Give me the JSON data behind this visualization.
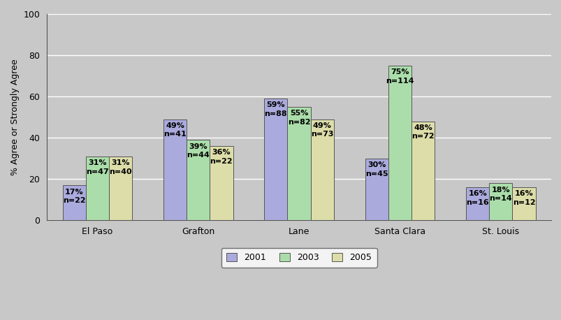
{
  "categories": [
    "El Paso",
    "Grafton",
    "Lane",
    "Santa Clara",
    "St. Louis"
  ],
  "years": [
    "2001",
    "2003",
    "2005"
  ],
  "values": {
    "2001": [
      17,
      49,
      59,
      30,
      16
    ],
    "2003": [
      31,
      39,
      55,
      75,
      18
    ],
    "2005": [
      31,
      36,
      49,
      48,
      16
    ]
  },
  "ns": {
    "2001": [
      22,
      41,
      88,
      45,
      16
    ],
    "2003": [
      47,
      44,
      82,
      114,
      14
    ],
    "2005": [
      40,
      22,
      73,
      72,
      12
    ]
  },
  "colors": {
    "2001": "#aaaadd",
    "2003": "#aaddaa",
    "2005": "#ddddaa"
  },
  "bar_width": 0.23,
  "ylabel": "% Agree or Strongly Agree",
  "ylim": [
    0,
    100
  ],
  "yticks": [
    0,
    20,
    40,
    60,
    80,
    100
  ],
  "fig_background_color": "#c8c8c8",
  "plot_background_color": "#c8c8c8",
  "label_fontsize": 8,
  "tick_fontsize": 9,
  "legend_fontsize": 9
}
